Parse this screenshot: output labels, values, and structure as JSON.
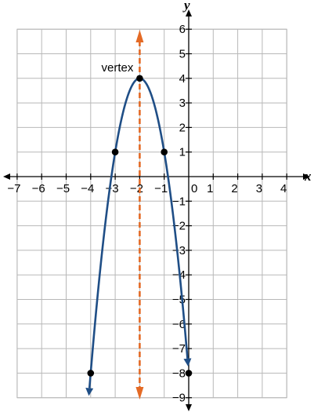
{
  "chart_data": {
    "type": "line",
    "title": "",
    "xlabel": "x",
    "ylabel": "y",
    "xlim": [
      -7,
      4
    ],
    "ylim": [
      -9,
      6
    ],
    "grid": true,
    "x_ticks": [
      -7,
      -6,
      -5,
      -4,
      -3,
      -2,
      -1,
      0,
      1,
      2,
      3,
      4
    ],
    "y_ticks": [
      6,
      5,
      4,
      3,
      2,
      1,
      0,
      -1,
      -2,
      -3,
      -4,
      -5,
      -6,
      -7,
      -8,
      -9
    ],
    "x_tick_labels": [
      "−7",
      "−6",
      "−5",
      "−4",
      "−3",
      "−2",
      "−1",
      "0",
      "1",
      "2",
      "3",
      "4"
    ],
    "y_tick_labels": [
      "6",
      "5",
      "4",
      "3",
      "2",
      "1",
      "−1",
      "−2",
      "−3",
      "−4",
      "−5",
      "−6",
      "−7",
      "−8",
      "−9"
    ],
    "series": [
      {
        "kind": "parabola",
        "vertex": [
          -2,
          4
        ],
        "a": -3,
        "x_range": [
          -4.05,
          -0.05
        ],
        "color": "#1f4e86",
        "arrows": "both-ends-down"
      }
    ],
    "axis_of_symmetry": {
      "x": -2,
      "color": "#e46a25",
      "style": "dashed",
      "arrows": "both"
    },
    "points": [
      {
        "x": -2,
        "y": 4
      },
      {
        "x": -3,
        "y": 1
      },
      {
        "x": -1,
        "y": 1
      },
      {
        "x": -4,
        "y": -8
      },
      {
        "x": 0,
        "y": -8
      }
    ],
    "annotations": [
      {
        "text": "vertex",
        "x": -2,
        "y": 4
      }
    ]
  }
}
